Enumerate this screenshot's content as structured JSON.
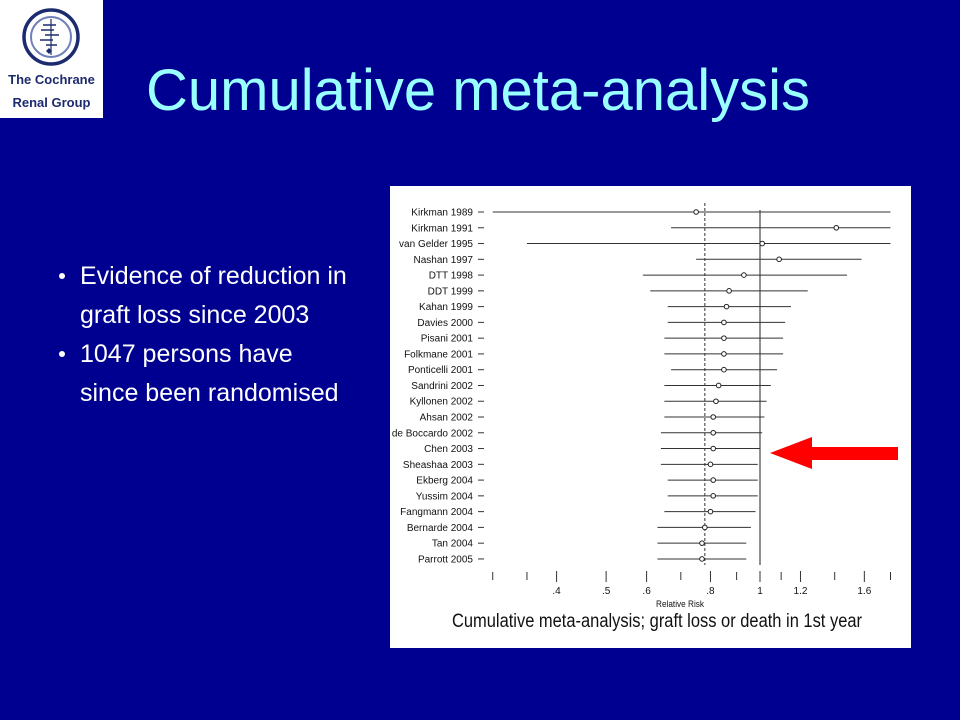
{
  "slide": {
    "logo": {
      "line1": "The Cochrane",
      "line2": "Renal Group",
      "icon": "cochrane-logo-icon"
    },
    "title": "Cumulative meta-analysis",
    "bullets": [
      {
        "lines": [
          "Evidence of reduction in",
          "graft loss since 2003"
        ]
      },
      {
        "lines": [
          "1047 persons have",
          "since been randomised"
        ]
      }
    ],
    "arrow_icon": "left-arrow-icon",
    "colors": {
      "background": "#000090",
      "title": "#99ffff",
      "bullet_text": "#ffffff",
      "logo_text": "#1c2a6e",
      "arrow": "#ff0000"
    }
  },
  "chart_data": {
    "type": "scatter",
    "title": "Cumulative meta-analysis; graft loss or death in 1st year",
    "xlabel": "Relative Risk",
    "xscale": "log",
    "xlim": [
      0.3,
      1.88
    ],
    "xticks": [
      0.4,
      0.5,
      0.6,
      0.8,
      1,
      1.2,
      1.6
    ],
    "xtick_labels": [
      ".4",
      ".5",
      ".6",
      ".8",
      "1",
      "1.2",
      "1.6"
    ],
    "minor_xticks": [
      0.3,
      0.35,
      0.7,
      0.9,
      1.1,
      1.4,
      1.8
    ],
    "reference_line": 1,
    "overall_estimate": 0.78,
    "categories": [
      "Kirkman 1989",
      "Kirkman 1991",
      "van Gelder 1995",
      "Nashan 1997",
      "DTT 1998",
      "DDT 1999",
      "Kahan 1999",
      "Davies 2000",
      "Pisani 2001",
      "Folkmane 2001",
      "Ponticelli 2001",
      "Sandrini 2002",
      "Kyllonen 2002",
      "Ahsan 2002",
      "de Boccardo 2002",
      "Chen 2003",
      "Sheashaa 2003",
      "Ekberg 2004",
      "Yussim 2004",
      "Fangmann 2004",
      "Bernarde 2004",
      "Tan 2004",
      "Parrott 2005"
    ],
    "series": [
      {
        "values": [
          0.75,
          1.41,
          1.01,
          1.09,
          0.93,
          0.87,
          0.86,
          0.85,
          0.85,
          0.85,
          0.85,
          0.83,
          0.82,
          0.81,
          0.81,
          0.81,
          0.8,
          0.81,
          0.81,
          0.8,
          0.78,
          0.77,
          0.77
        ],
        "ci_lower": [
          0.3,
          0.67,
          0.35,
          0.75,
          0.59,
          0.61,
          0.66,
          0.66,
          0.65,
          0.65,
          0.67,
          0.65,
          0.65,
          0.65,
          0.64,
          0.64,
          0.64,
          0.66,
          0.66,
          0.65,
          0.63,
          0.63,
          0.63
        ],
        "ci_upper": [
          1.8,
          1.8,
          1.8,
          1.58,
          1.48,
          1.24,
          1.15,
          1.12,
          1.11,
          1.11,
          1.08,
          1.05,
          1.03,
          1.02,
          1.01,
          1.0,
          0.99,
          0.99,
          0.99,
          0.98,
          0.96,
          0.94,
          0.94
        ]
      }
    ]
  }
}
